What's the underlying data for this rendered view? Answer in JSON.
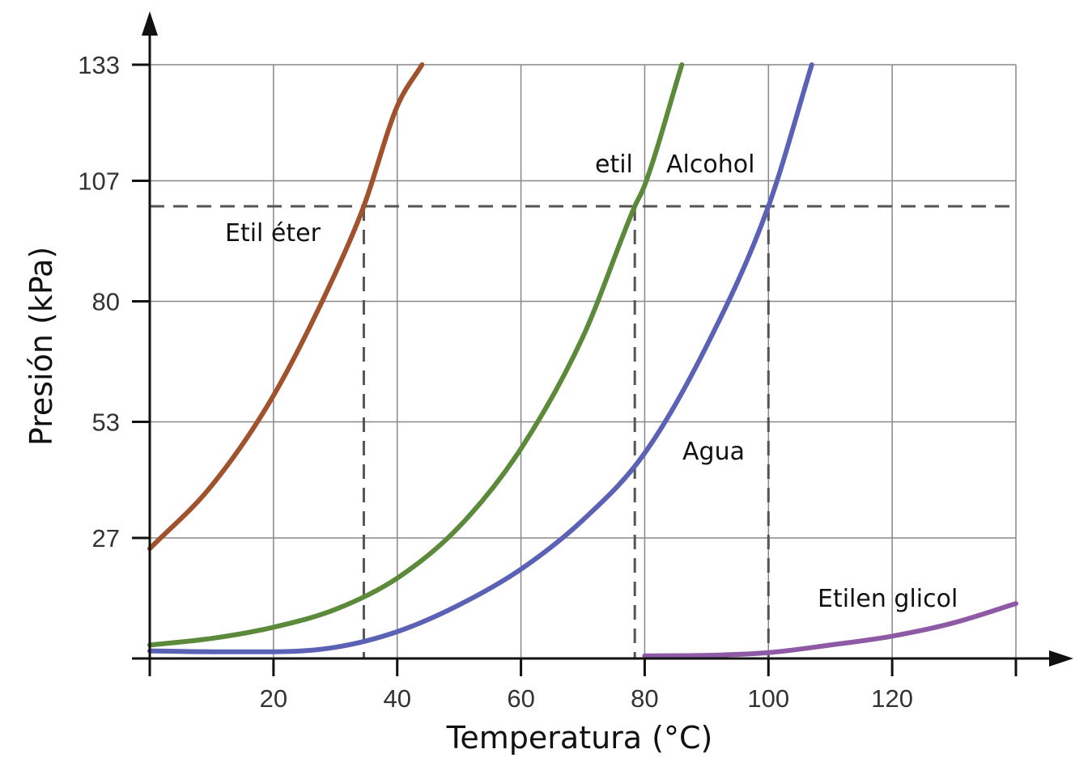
{
  "chart_data": {
    "type": "line",
    "xlabel": "Temperatura (°C)",
    "ylabel": "Presión (kPa)",
    "xlim": [
      0,
      140
    ],
    "ylim": [
      0,
      133
    ],
    "xticks": [
      20,
      40,
      60,
      80,
      100,
      120
    ],
    "yticks": [
      27,
      53,
      80,
      107,
      133
    ],
    "grid": true,
    "reference_pressure": 101.3,
    "series": [
      {
        "name": "Etil éter",
        "color": "#a0522d",
        "x": [
          0,
          10,
          20,
          30,
          34.6,
          40,
          44
        ],
        "y": [
          24.6,
          38.7,
          58.9,
          86.3,
          101.3,
          123.7,
          133
        ]
      },
      {
        "name": "etil Alcohol",
        "color": "#5b8a3a",
        "x": [
          0,
          10,
          20,
          30,
          40,
          50,
          60,
          70,
          78.4,
          80,
          86
        ],
        "y": [
          3,
          4.5,
          7,
          11,
          18,
          29.5,
          47,
          72,
          101.3,
          106,
          133
        ]
      },
      {
        "name": "Agua",
        "color": "#5b62b5",
        "x": [
          0,
          10,
          20,
          30,
          40,
          50,
          60,
          70,
          80,
          90,
          100,
          107
        ],
        "y": [
          1.7,
          1.5,
          1.5,
          2.5,
          6,
          12,
          20,
          31,
          46,
          70,
          101.3,
          133
        ]
      },
      {
        "name": "Etilen glicol",
        "color": "#8e5aa6",
        "x": [
          80,
          90,
          100,
          110,
          120,
          130,
          140
        ],
        "y": [
          0.6,
          0.7,
          1.3,
          3,
          5,
          8,
          12.3
        ]
      }
    ],
    "boiling_points": [
      34.6,
      78.4,
      100
    ],
    "labels": {
      "ether": "Etil éter",
      "alcohol_1": "etil",
      "alcohol_2": "Alcohol",
      "water": "Agua",
      "glycol": "Etilen glicol"
    }
  }
}
